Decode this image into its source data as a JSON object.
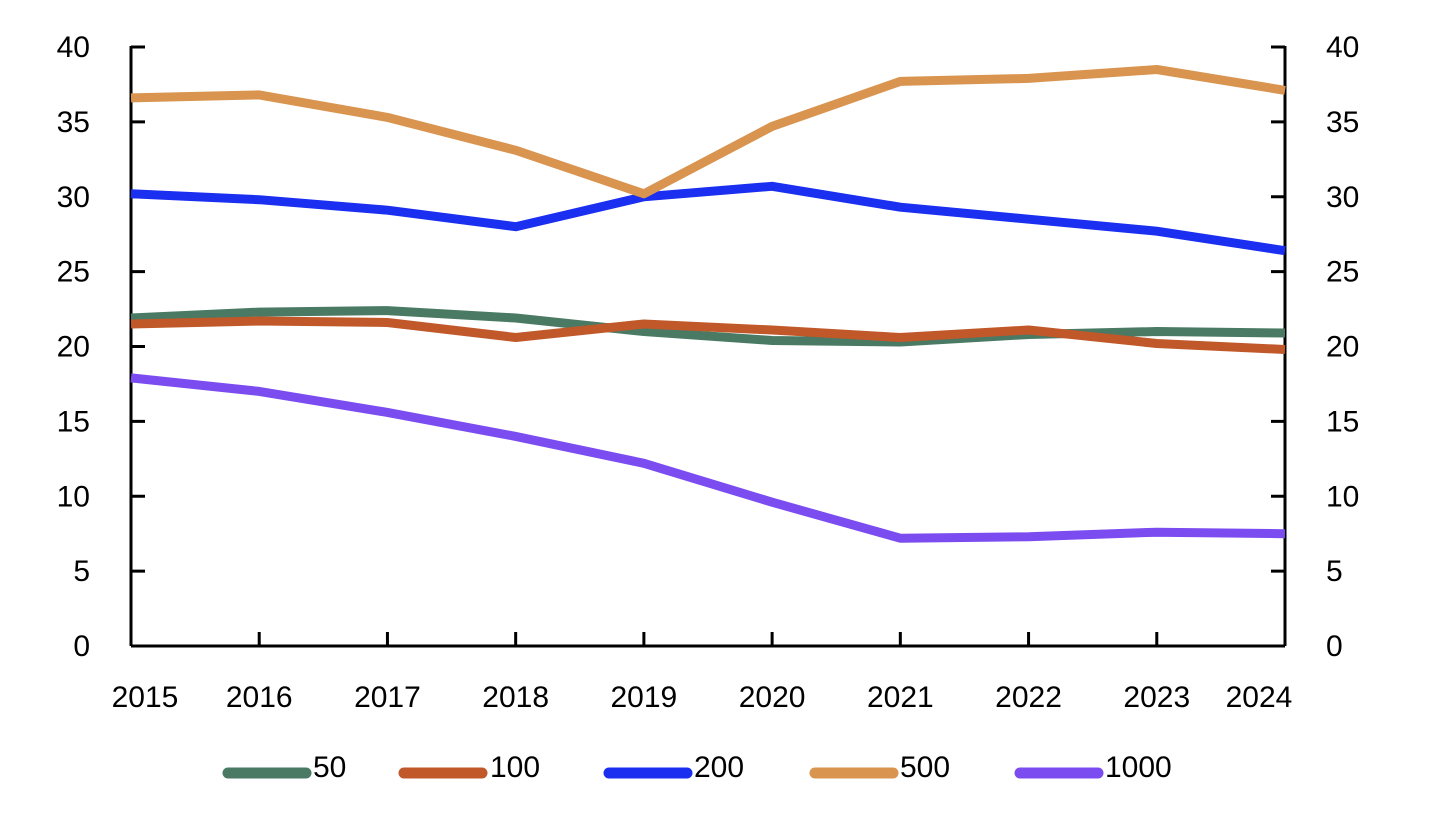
{
  "chart_data": {
    "type": "line",
    "title": "",
    "xlabel": "",
    "ylabel": "",
    "x": [
      "2015",
      "2016",
      "2017",
      "2018",
      "2019",
      "2020",
      "2021",
      "2022",
      "2023",
      "2024"
    ],
    "ylim": [
      0,
      40
    ],
    "yticks": [
      "0",
      "5",
      "10",
      "15",
      "20",
      "25",
      "30",
      "35",
      "40"
    ],
    "y2ticks": [
      "0",
      "5",
      "10",
      "15",
      "20",
      "25",
      "30",
      "35",
      "40"
    ],
    "grid": false,
    "legend_position": "bottom",
    "series": [
      {
        "name": "50",
        "color": "#4a7a64",
        "values": [
          21.9,
          22.3,
          22.4,
          21.9,
          21.0,
          20.4,
          20.3,
          20.8,
          21.0,
          20.9
        ]
      },
      {
        "name": "100",
        "color": "#c0582a",
        "values": [
          21.5,
          21.7,
          21.6,
          20.6,
          21.5,
          21.1,
          20.6,
          21.1,
          20.2,
          19.8
        ]
      },
      {
        "name": "200",
        "color": "#1a2ff0",
        "values": [
          30.2,
          29.8,
          29.1,
          28.0,
          30.0,
          30.7,
          29.3,
          28.5,
          27.7,
          26.4
        ]
      },
      {
        "name": "500",
        "color": "#d9944f",
        "values": [
          36.6,
          36.8,
          35.3,
          33.1,
          30.2,
          34.7,
          37.7,
          37.9,
          38.5,
          37.1
        ]
      },
      {
        "name": "1000",
        "color": "#7b4cf0",
        "values": [
          17.9,
          17.0,
          15.6,
          14.0,
          12.2,
          9.6,
          7.2,
          7.3,
          7.6,
          7.5
        ]
      }
    ]
  }
}
